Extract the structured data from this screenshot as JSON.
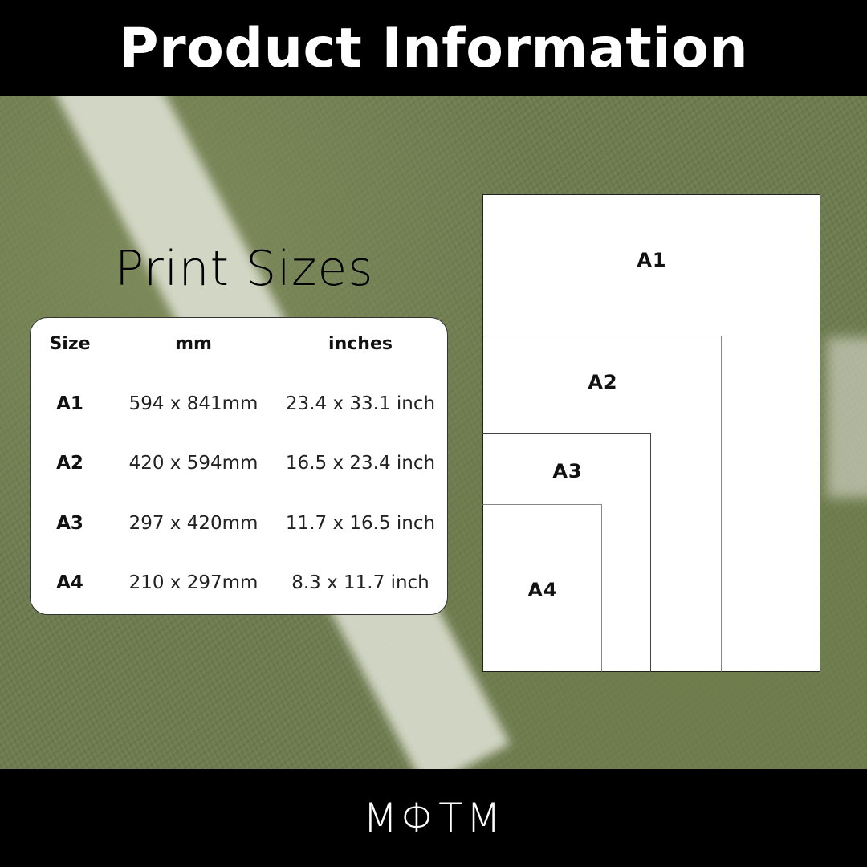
{
  "header": {
    "title": "Product Information"
  },
  "section_title": "Print Sizes",
  "table": {
    "headers": [
      "Size",
      "mm",
      "inches"
    ],
    "rows": [
      [
        "A1",
        "594 x 841mm",
        "23.4 x 33.1 inch"
      ],
      [
        "A2",
        "420 x 594mm",
        "16.5 x 23.4 inch"
      ],
      [
        "A3",
        "297 x 420mm",
        "11.7 x 16.5 inch"
      ],
      [
        "A4",
        "210 x 297mm",
        "8.3 x 11.7 inch"
      ]
    ]
  },
  "diagram": {
    "labels": [
      "A1",
      "A2",
      "A3",
      "A4"
    ]
  },
  "footer": {
    "logo": "MΦTM"
  }
}
